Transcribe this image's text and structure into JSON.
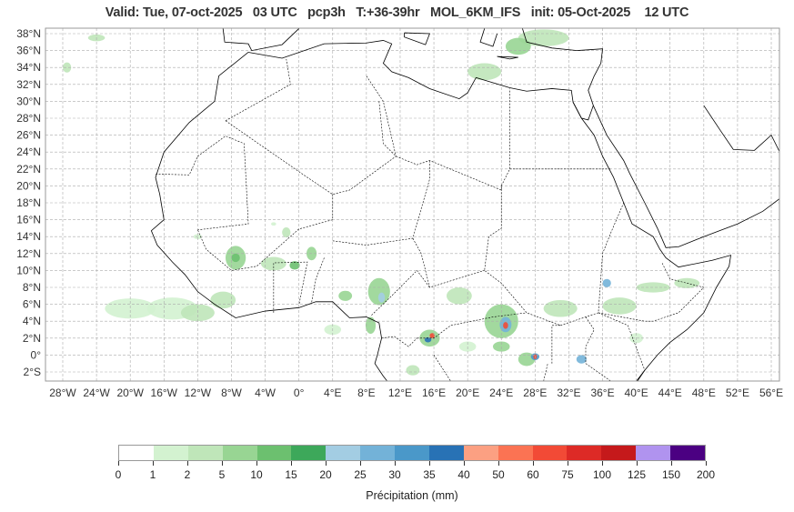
{
  "title": "Valid: Tue, 07-oct-2025   03 UTC   pcp3h   T:+36-39hr   MOL_6KM_IFS   init: 05-Oct-2025    12 UTC",
  "lat_labels": [
    "38°N",
    "36°N",
    "34°N",
    "32°N",
    "30°N",
    "28°N",
    "26°N",
    "24°N",
    "22°N",
    "20°N",
    "18°N",
    "16°N",
    "14°N",
    "12°N",
    "10°N",
    "8°N",
    "6°N",
    "4°N",
    "2°N",
    "0°",
    "2°S"
  ],
  "lon_labels": [
    "28°W",
    "24°W",
    "20°W",
    "16°W",
    "12°W",
    "8°W",
    "4°W",
    "0°",
    "4°E",
    "8°E",
    "12°E",
    "16°E",
    "20°E",
    "24°E",
    "28°E",
    "32°E",
    "36°E",
    "40°E",
    "44°E",
    "48°E",
    "52°E",
    "56°E"
  ],
  "colorbar": {
    "ticks": [
      "0",
      "1",
      "2",
      "5",
      "10",
      "15",
      "20",
      "25",
      "30",
      "35",
      "40",
      "50",
      "60",
      "75",
      "100",
      "125",
      "150",
      "200"
    ],
    "colors": [
      "#ffffff",
      "#d3f2d0",
      "#bfe6b9",
      "#98d593",
      "#6cc06f",
      "#3da85a",
      "#a3cde3",
      "#73b2d8",
      "#4a98c9",
      "#2872b5",
      "#fca082",
      "#fb7353",
      "#f24a36",
      "#dd2a26",
      "#c5191b",
      "#b093ef",
      "#4b0082"
    ],
    "label": "Précipitation (mm)"
  }
}
